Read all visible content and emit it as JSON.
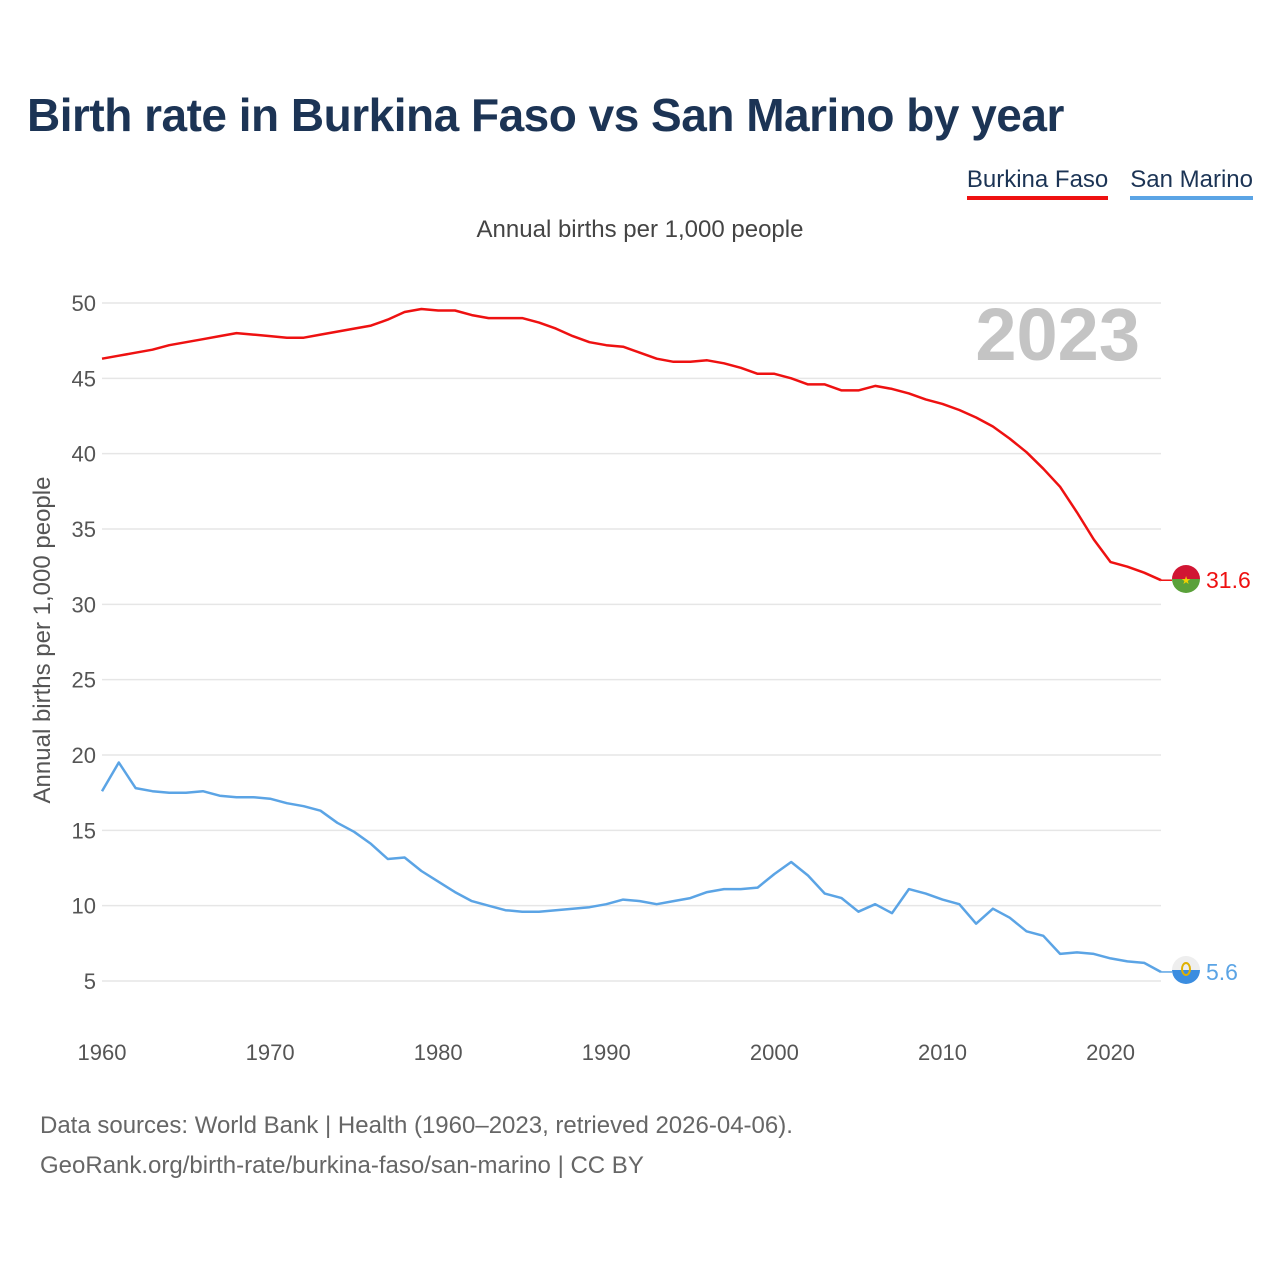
{
  "header": {
    "title": "Birth rate in Burkina Faso vs San Marino by year",
    "subtitle": "Annual births per 1,000 people"
  },
  "legend": {
    "burkina": "Burkina Faso",
    "sanmarino": "San Marino"
  },
  "footer": {
    "line1": "Data sources: World Bank | Health (1960–2023, retrieved 2026-04-06).",
    "line2": "GeoRank.org/birth-rate/burkina-faso/san-marino | CC BY"
  },
  "colors": {
    "burkina": "#ee1111",
    "sanmarino": "#5ba4e5",
    "title": "#1c3455"
  },
  "chart_data": {
    "type": "line",
    "title": "Birth rate in Burkina Faso vs San Marino by year",
    "xlabel": "",
    "ylabel": "Annual births per 1,000 people",
    "year_label": "2023",
    "xlim": [
      1960,
      2023
    ],
    "ylim": [
      5,
      50
    ],
    "x_ticks": [
      1960,
      1970,
      1980,
      1990,
      2000,
      2010,
      2020
    ],
    "y_ticks": [
      5,
      10,
      15,
      20,
      25,
      30,
      35,
      40,
      45,
      50
    ],
    "grid": true,
    "x": [
      1960,
      1961,
      1962,
      1963,
      1964,
      1965,
      1966,
      1967,
      1968,
      1969,
      1970,
      1971,
      1972,
      1973,
      1974,
      1975,
      1976,
      1977,
      1978,
      1979,
      1980,
      1981,
      1982,
      1983,
      1984,
      1985,
      1986,
      1987,
      1988,
      1989,
      1990,
      1991,
      1992,
      1993,
      1994,
      1995,
      1996,
      1997,
      1998,
      1999,
      2000,
      2001,
      2002,
      2003,
      2004,
      2005,
      2006,
      2007,
      2008,
      2009,
      2010,
      2011,
      2012,
      2013,
      2014,
      2015,
      2016,
      2017,
      2018,
      2019,
      2020,
      2021,
      2022,
      2023
    ],
    "series": [
      {
        "name": "Burkina Faso",
        "end_label": "31.6",
        "values": [
          46.3,
          46.5,
          46.7,
          46.9,
          47.2,
          47.4,
          47.6,
          47.8,
          48.0,
          47.9,
          47.8,
          47.7,
          47.7,
          47.9,
          48.1,
          48.3,
          48.5,
          48.9,
          49.4,
          49.6,
          49.5,
          49.5,
          49.2,
          49.0,
          49.0,
          49.0,
          48.7,
          48.3,
          47.8,
          47.4,
          47.2,
          47.1,
          46.7,
          46.3,
          46.1,
          46.1,
          46.2,
          46.0,
          45.7,
          45.3,
          45.3,
          45.0,
          44.6,
          44.6,
          44.2,
          44.2,
          44.5,
          44.3,
          44.0,
          43.6,
          43.3,
          42.9,
          42.4,
          41.8,
          41.0,
          40.1,
          39.0,
          37.8,
          36.1,
          34.3,
          32.8,
          32.5,
          32.1,
          31.6
        ]
      },
      {
        "name": "San Marino",
        "end_label": "5.6",
        "values": [
          17.6,
          19.5,
          17.8,
          17.6,
          17.5,
          17.5,
          17.6,
          17.3,
          17.2,
          17.2,
          17.1,
          16.8,
          16.6,
          16.3,
          15.5,
          14.9,
          14.1,
          13.1,
          13.2,
          12.3,
          11.6,
          10.9,
          10.3,
          10.0,
          9.7,
          9.6,
          9.6,
          9.7,
          9.8,
          9.9,
          10.1,
          10.4,
          10.3,
          10.1,
          10.3,
          10.5,
          10.9,
          11.1,
          11.1,
          11.2,
          12.1,
          12.9,
          12.0,
          10.8,
          10.5,
          9.6,
          10.1,
          9.5,
          11.1,
          10.8,
          10.4,
          10.1,
          8.8,
          9.8,
          9.2,
          8.3,
          8.0,
          6.8,
          6.9,
          6.8,
          6.5,
          6.3,
          6.2,
          5.6
        ]
      }
    ]
  }
}
